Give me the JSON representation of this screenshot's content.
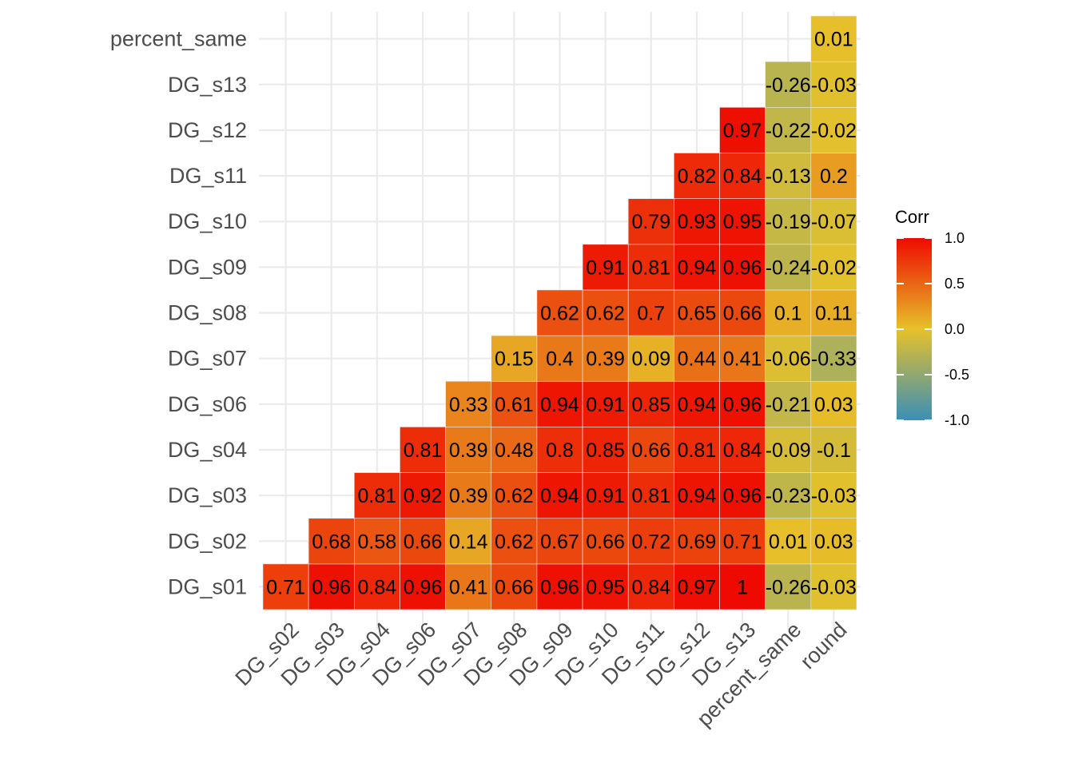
{
  "chart_data": {
    "type": "heatmap",
    "title": "",
    "xlabel": "",
    "ylabel": "",
    "x_categories": [
      "DG_s02",
      "DG_s03",
      "DG_s04",
      "DG_s06",
      "DG_s07",
      "DG_s08",
      "DG_s09",
      "DG_s10",
      "DG_s11",
      "DG_s12",
      "DG_s13",
      "percent_same",
      "round"
    ],
    "y_categories": [
      "DG_s01",
      "DG_s02",
      "DG_s03",
      "DG_s04",
      "DG_s06",
      "DG_s07",
      "DG_s08",
      "DG_s09",
      "DG_s10",
      "DG_s11",
      "DG_s12",
      "DG_s13",
      "percent_same"
    ],
    "rows": [
      {
        "y": "DG_s01",
        "start_col": 0,
        "values": [
          0.71,
          0.96,
          0.84,
          0.96,
          0.41,
          0.66,
          0.96,
          0.95,
          0.84,
          0.97,
          1,
          -0.26,
          -0.03
        ]
      },
      {
        "y": "DG_s02",
        "start_col": 1,
        "values": [
          0.68,
          0.58,
          0.66,
          0.14,
          0.62,
          0.67,
          0.66,
          0.72,
          0.69,
          0.71,
          0.01,
          0.03
        ]
      },
      {
        "y": "DG_s03",
        "start_col": 2,
        "values": [
          0.81,
          0.92,
          0.39,
          0.62,
          0.94,
          0.91,
          0.81,
          0.94,
          0.96,
          -0.23,
          -0.03
        ]
      },
      {
        "y": "DG_s04",
        "start_col": 3,
        "values": [
          0.81,
          0.39,
          0.48,
          0.8,
          0.85,
          0.66,
          0.81,
          0.84,
          -0.09,
          -0.1
        ]
      },
      {
        "y": "DG_s06",
        "start_col": 4,
        "values": [
          0.33,
          0.61,
          0.94,
          0.91,
          0.85,
          0.94,
          0.96,
          -0.21,
          0.03
        ]
      },
      {
        "y": "DG_s07",
        "start_col": 5,
        "values": [
          0.15,
          0.4,
          0.39,
          0.09,
          0.44,
          0.41,
          -0.06,
          -0.33
        ]
      },
      {
        "y": "DG_s08",
        "start_col": 6,
        "values": [
          0.62,
          0.62,
          0.7,
          0.65,
          0.66,
          0.1,
          0.11
        ]
      },
      {
        "y": "DG_s09",
        "start_col": 7,
        "values": [
          0.91,
          0.81,
          0.94,
          0.96,
          -0.24,
          -0.02
        ]
      },
      {
        "y": "DG_s10",
        "start_col": 8,
        "values": [
          0.79,
          0.93,
          0.95,
          -0.19,
          -0.07
        ]
      },
      {
        "y": "DG_s11",
        "start_col": 9,
        "values": [
          0.82,
          0.84,
          -0.13,
          0.2
        ]
      },
      {
        "y": "DG_s12",
        "start_col": 10,
        "values": [
          0.97,
          -0.22,
          -0.02
        ]
      },
      {
        "y": "DG_s13",
        "start_col": 11,
        "values": [
          -0.26,
          -0.03
        ]
      },
      {
        "y": "percent_same",
        "start_col": 12,
        "values": [
          0.01
        ]
      }
    ],
    "color_scale": {
      "low": "#3a8fb7",
      "mid": "#e6c12a",
      "high": "#ee0a00",
      "limits": [
        -1,
        1
      ]
    },
    "legend": {
      "title": "Corr",
      "ticks": [
        "1.0",
        "0.5",
        "0.0",
        "-0.5",
        "-1.0"
      ],
      "placement": "right"
    },
    "grid": true
  }
}
